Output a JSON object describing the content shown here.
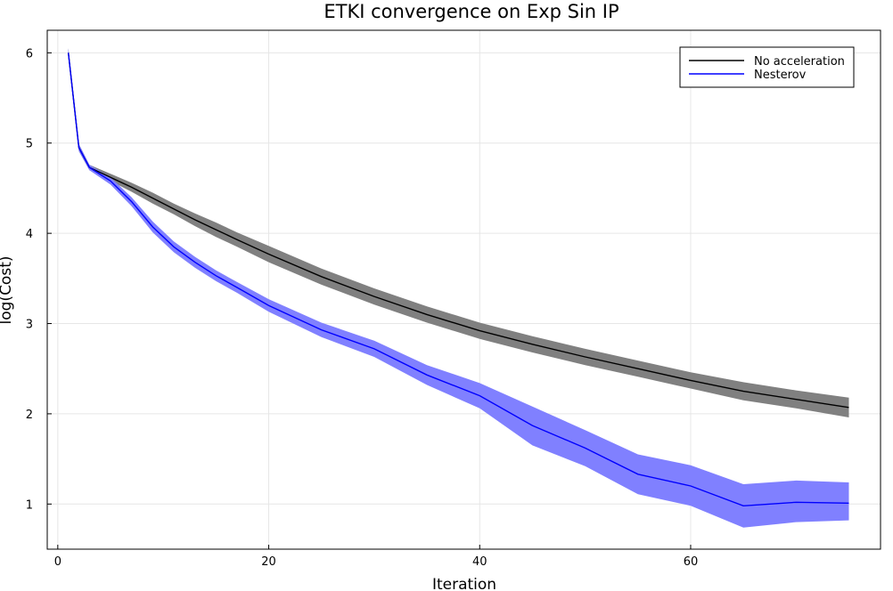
{
  "chart_data": {
    "type": "line",
    "title": "ETKI convergence on Exp Sin IP",
    "xlabel": "Iteration",
    "ylabel": "log(Cost)",
    "xlim": [
      -1,
      78
    ],
    "ylim": [
      0.5,
      6.25
    ],
    "xticks": [
      0,
      20,
      40,
      60
    ],
    "yticks": [
      1,
      2,
      3,
      4,
      5,
      6
    ],
    "grid": true,
    "legend_position": "top-right",
    "x": [
      1,
      2,
      3,
      5,
      7,
      9,
      11,
      13,
      15,
      17,
      20,
      25,
      30,
      35,
      40,
      45,
      50,
      55,
      60,
      65,
      70,
      75
    ],
    "series": [
      {
        "name": "No acceleration",
        "color": "#000000",
        "band_color": "#808080",
        "values": [
          6.0,
          4.95,
          4.73,
          4.62,
          4.51,
          4.39,
          4.27,
          4.15,
          4.04,
          3.93,
          3.77,
          3.52,
          3.3,
          3.1,
          2.92,
          2.77,
          2.63,
          2.5,
          2.37,
          2.25,
          2.16,
          2.07
        ],
        "lower": [
          5.95,
          4.91,
          4.7,
          4.58,
          4.46,
          4.33,
          4.21,
          4.08,
          3.96,
          3.85,
          3.68,
          3.43,
          3.21,
          3.01,
          2.83,
          2.68,
          2.54,
          2.41,
          2.28,
          2.15,
          2.06,
          1.96
        ],
        "upper": [
          6.05,
          4.99,
          4.76,
          4.66,
          4.56,
          4.45,
          4.33,
          4.22,
          4.12,
          4.01,
          3.86,
          3.61,
          3.39,
          3.19,
          3.01,
          2.86,
          2.72,
          2.59,
          2.46,
          2.35,
          2.26,
          2.18
        ]
      },
      {
        "name": "Nesterov",
        "color": "#0000ff",
        "band_color": "#8080ff",
        "values": [
          6.0,
          4.95,
          4.73,
          4.58,
          4.35,
          4.07,
          3.85,
          3.68,
          3.53,
          3.4,
          3.2,
          2.93,
          2.72,
          2.43,
          2.2,
          1.87,
          1.62,
          1.33,
          1.2,
          0.98,
          1.02,
          1.01
        ],
        "lower": [
          5.95,
          4.91,
          4.7,
          4.54,
          4.3,
          4.01,
          3.79,
          3.62,
          3.47,
          3.34,
          3.13,
          2.85,
          2.63,
          2.32,
          2.06,
          1.65,
          1.42,
          1.11,
          0.98,
          0.74,
          0.8,
          0.82
        ],
        "upper": [
          6.05,
          4.99,
          4.76,
          4.62,
          4.4,
          4.13,
          3.91,
          3.74,
          3.59,
          3.46,
          3.27,
          3.01,
          2.81,
          2.54,
          2.34,
          2.08,
          1.82,
          1.55,
          1.43,
          1.22,
          1.26,
          1.24
        ]
      }
    ]
  }
}
